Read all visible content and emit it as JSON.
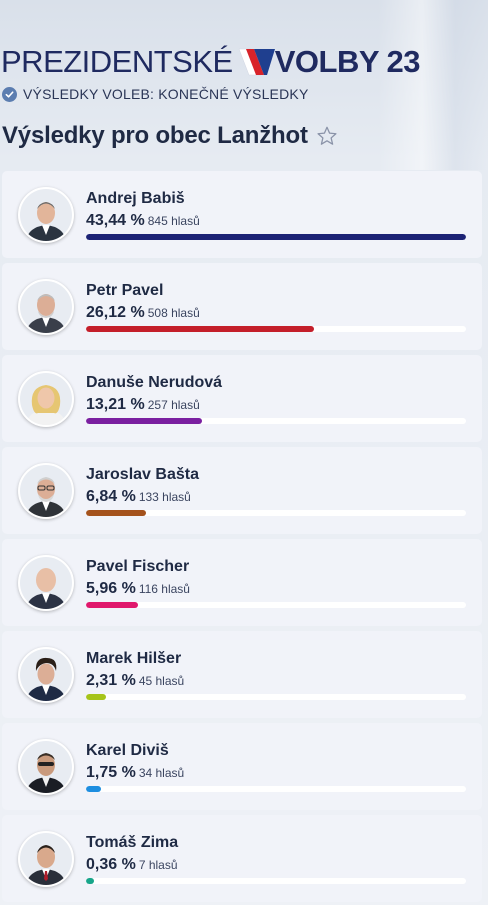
{
  "header": {
    "brand_left": "PREZIDENTSKÉ",
    "brand_right": "VOLBY 23",
    "status_text": "VÝSLEDKY VOLEB: KONEČNÉ VÝSLEDKY"
  },
  "page": {
    "title": "Výsledky pro obec Lanžhot"
  },
  "candidates": [
    {
      "name": "Andrej Babiš",
      "pct": "43,44 %",
      "votes": "845 hlasů",
      "share": 43.44,
      "color": "#1c2275"
    },
    {
      "name": "Petr Pavel",
      "pct": "26,12 %",
      "votes": "508 hlasů",
      "share": 26.12,
      "color": "#c41e2a"
    },
    {
      "name": "Danuše Nerudová",
      "pct": "13,21 %",
      "votes": "257 hlasů",
      "share": 13.21,
      "color": "#7a1fa0"
    },
    {
      "name": "Jaroslav Bašta",
      "pct": "6,84 %",
      "votes": "133 hlasů",
      "share": 6.84,
      "color": "#a4521c"
    },
    {
      "name": "Pavel Fischer",
      "pct": "5,96 %",
      "votes": "116 hlasů",
      "share": 5.96,
      "color": "#e0186c"
    },
    {
      "name": "Marek Hilšer",
      "pct": "2,31 %",
      "votes": "45 hlasů",
      "share": 2.31,
      "color": "#a6c41a"
    },
    {
      "name": "Karel Diviš",
      "pct": "1,75 %",
      "votes": "34 hlasů",
      "share": 1.75,
      "color": "#1d8ee0"
    },
    {
      "name": "Tomáš Zima",
      "pct": "0,36 %",
      "votes": "7 hlasů",
      "share": 0.36,
      "color": "#17a58a"
    }
  ]
}
